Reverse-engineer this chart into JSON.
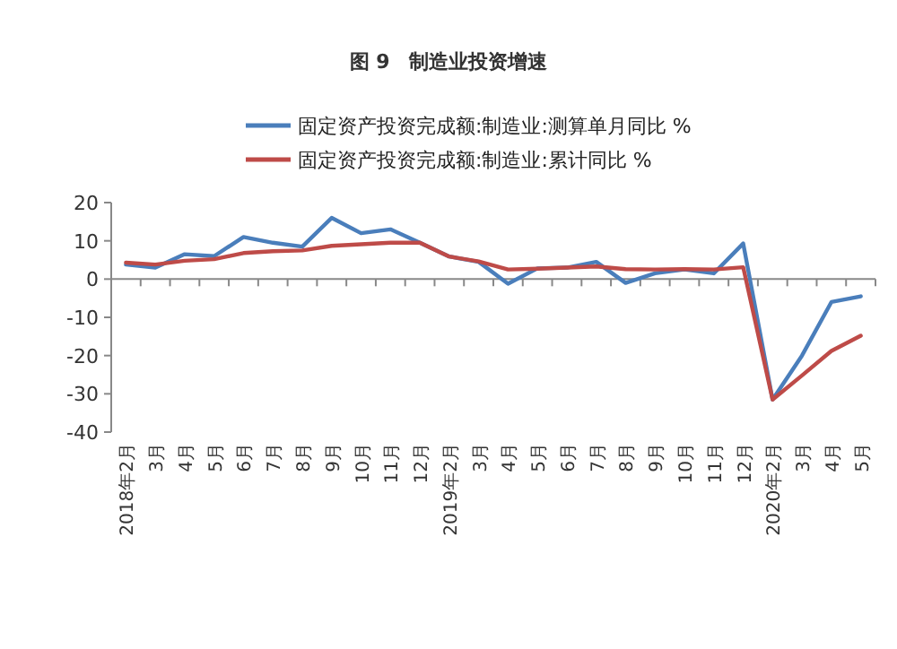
{
  "chart_data": {
    "type": "line",
    "title": "图 9　制造业投资增速",
    "categories": [
      "2018年2月",
      "3月",
      "4月",
      "5月",
      "6月",
      "7月",
      "8月",
      "9月",
      "10月",
      "11月",
      "12月",
      "2019年2月",
      "3月",
      "4月",
      "5月",
      "6月",
      "7月",
      "8月",
      "9月",
      "10月",
      "11月",
      "12月",
      "2020年2月",
      "3月",
      "4月",
      "5月"
    ],
    "series": [
      {
        "name": "固定资产投资完成额:制造业:测算单月同比 %",
        "color": "#4a7ebb",
        "values": [
          3.8,
          3,
          6.5,
          6,
          11,
          9.5,
          8.5,
          16,
          12,
          13,
          9.5,
          5.9,
          4.5,
          -1.2,
          2.8,
          3,
          4.5,
          -1,
          1.5,
          2.5,
          1.5,
          9.3,
          -31.5,
          -20,
          -6,
          -4.5
        ]
      },
      {
        "name": "固定资产投资完成额:制造业:累计同比 %",
        "color": "#be4b48",
        "values": [
          4.3,
          3.8,
          4.8,
          5.2,
          6.8,
          7.3,
          7.5,
          8.7,
          9.1,
          9.5,
          9.5,
          5.9,
          4.6,
          2.5,
          2.7,
          3,
          3.3,
          2.6,
          2.5,
          2.6,
          2.5,
          3.1,
          -31.5,
          -25.2,
          -18.8,
          -14.8
        ]
      }
    ],
    "ylim": [
      -40,
      20
    ],
    "yticks": [
      -40,
      -30,
      -20,
      -10,
      0,
      10,
      20
    ],
    "legend": "top"
  }
}
